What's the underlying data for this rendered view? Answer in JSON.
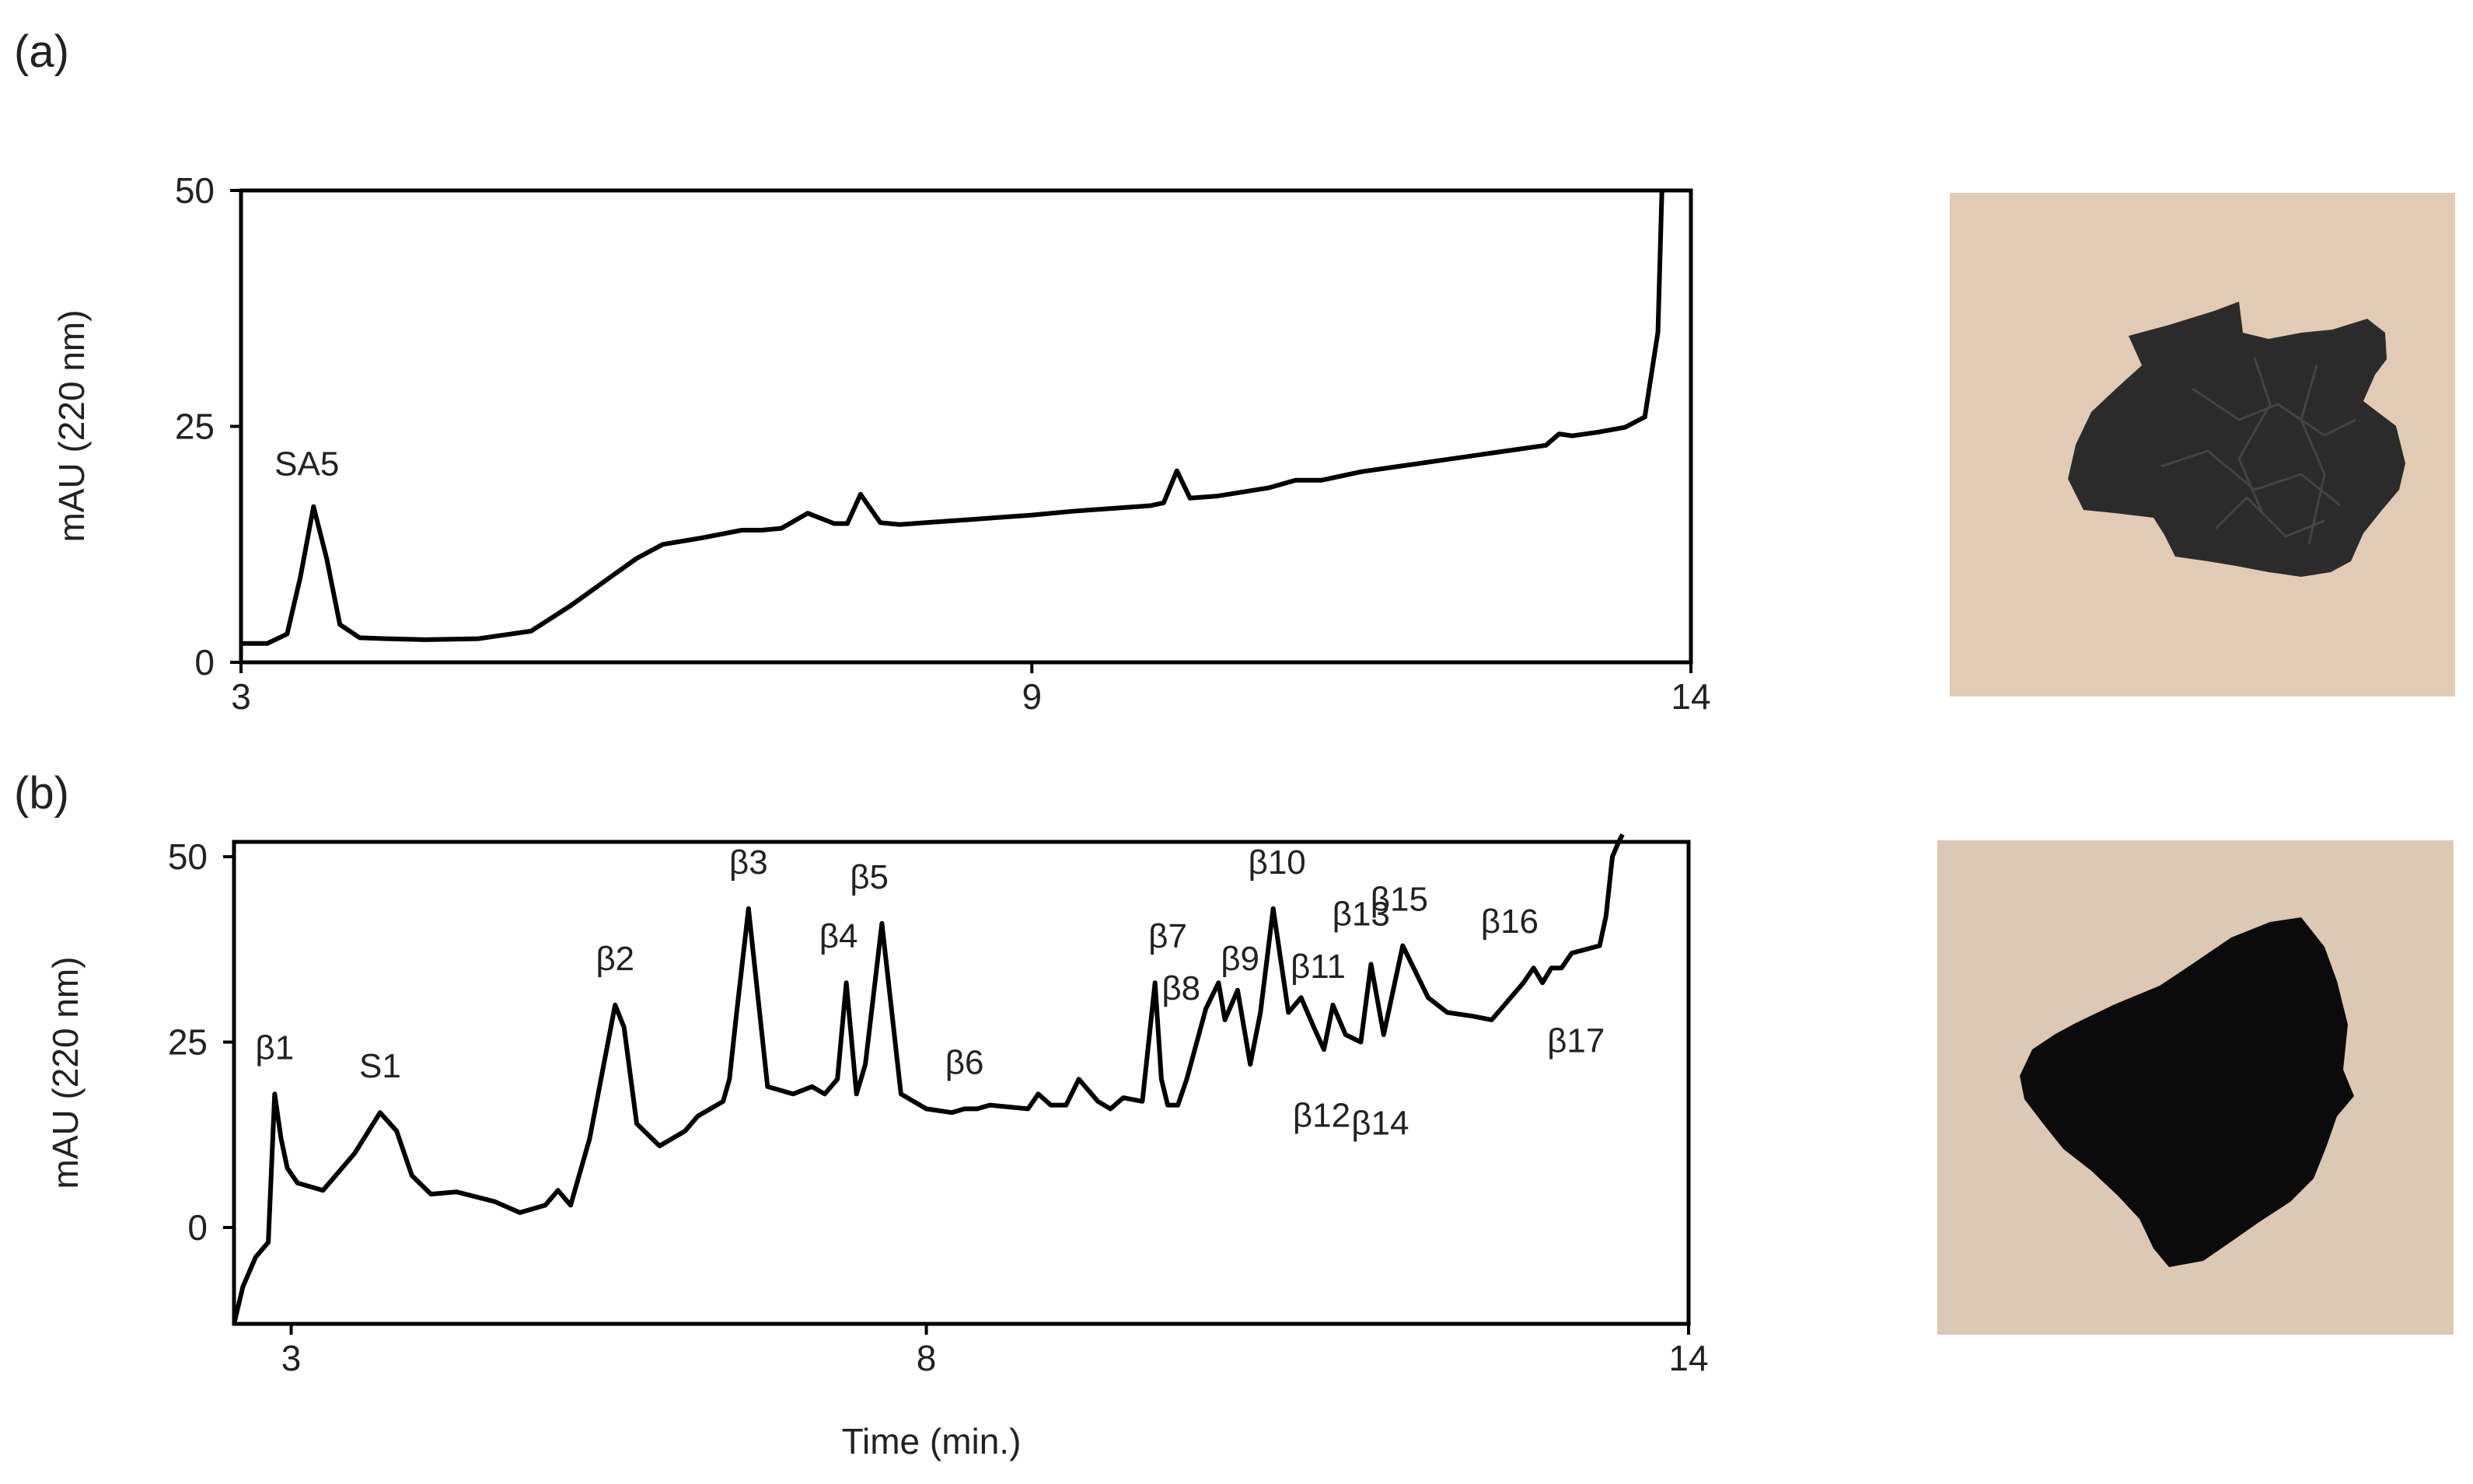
{
  "panels": {
    "a": {
      "label": "(a)"
    },
    "b": {
      "label": "(b)"
    }
  },
  "colors": {
    "trace": "#000000",
    "photo_bg_a": "#e2cbb6",
    "photo_bg_b": "#dcc8b5",
    "particle_a": "#2b2b2b",
    "particle_b": "#0b0b0b"
  },
  "chart_data": [
    {
      "type": "line",
      "panel": "a",
      "title": "",
      "xlabel": "",
      "ylabel": "mAU (220 nm)",
      "xlim": [
        3,
        14
      ],
      "ylim": [
        0,
        50
      ],
      "xticks": [
        3,
        9,
        14
      ],
      "yticks": [
        0,
        25,
        50
      ],
      "series": [
        {
          "x": [
            3.0,
            3.2,
            3.35,
            3.45,
            3.55,
            3.65,
            3.75,
            3.9,
            4.1,
            4.4,
            4.8,
            5.2,
            5.5,
            5.8,
            6.0,
            6.2,
            6.5,
            6.8,
            6.95,
            7.1,
            7.3,
            7.5,
            7.6,
            7.7,
            7.85,
            8.0,
            8.2,
            8.5,
            8.8,
            9.0,
            9.3,
            9.6,
            9.9,
            10.0,
            10.1,
            10.2,
            10.4,
            10.8,
            11.0,
            11.2,
            11.5,
            11.9,
            12.2,
            12.5,
            12.9,
            13.0,
            13.1,
            13.3,
            13.5,
            13.65,
            13.75,
            13.78
          ],
          "y": [
            2.0,
            2.0,
            3.0,
            9.0,
            16.5,
            11.0,
            4.0,
            2.6,
            2.5,
            2.4,
            2.5,
            3.3,
            6.0,
            9.0,
            11.0,
            12.5,
            13.2,
            14.0,
            14.0,
            14.2,
            15.8,
            14.7,
            14.7,
            17.8,
            14.8,
            14.6,
            14.8,
            15.1,
            15.4,
            15.6,
            16.0,
            16.3,
            16.6,
            16.9,
            20.3,
            17.4,
            17.6,
            18.5,
            19.3,
            19.3,
            20.2,
            21.0,
            21.6,
            22.2,
            23.0,
            24.2,
            24.0,
            24.4,
            24.9,
            26.0,
            35.0,
            50.0
          ]
        }
      ],
      "annotations": [
        {
          "text": "SA5",
          "x": 3.5,
          "y": 16.5
        }
      ]
    },
    {
      "type": "line",
      "panel": "b",
      "title": "",
      "xlabel": "Time (min.)",
      "ylabel": "mAU (220 nm)",
      "xlim": [
        2.55,
        14
      ],
      "ylim": [
        -13,
        52
      ],
      "xticks": [
        3,
        8,
        14
      ],
      "yticks": [
        0,
        25,
        50
      ],
      "series": [
        {
          "x": [
            2.55,
            2.62,
            2.72,
            2.82,
            2.87,
            2.92,
            2.97,
            3.05,
            3.25,
            3.5,
            3.7,
            3.83,
            3.95,
            4.1,
            4.3,
            4.6,
            4.8,
            5.0,
            5.1,
            5.2,
            5.35,
            5.55,
            5.62,
            5.72,
            5.9,
            6.1,
            6.2,
            6.3,
            6.4,
            6.45,
            6.5,
            6.6,
            6.75,
            6.95,
            7.1,
            7.2,
            7.3,
            7.37,
            7.45,
            7.52,
            7.65,
            7.8,
            8.0,
            8.2,
            8.3,
            8.4,
            8.5,
            8.8,
            8.88,
            8.98,
            9.1,
            9.2,
            9.35,
            9.45,
            9.55,
            9.7,
            9.8,
            9.85,
            9.9,
            9.98,
            10.05,
            10.2,
            10.3,
            10.35,
            10.45,
            10.55,
            10.63,
            10.73,
            10.85,
            10.95,
            11.05,
            11.13,
            11.2,
            11.3,
            11.42,
            11.5,
            11.6,
            11.75,
            11.95,
            12.1,
            12.3,
            12.45,
            12.6,
            12.7,
            12.78,
            12.85,
            12.92,
            13.0,
            13.08,
            13.3,
            13.35,
            13.4,
            13.45,
            13.48
          ],
          "y": [
            -13.0,
            -8.0,
            -4.0,
            -2.0,
            18.0,
            12.0,
            8.0,
            6.0,
            5.0,
            10.0,
            15.5,
            13.0,
            7.0,
            4.5,
            4.8,
            3.5,
            2.0,
            3.0,
            5.0,
            3.0,
            12.0,
            30.0,
            27.0,
            14.0,
            11.0,
            13.0,
            15.0,
            16.0,
            17.0,
            20.0,
            28.0,
            43.0,
            19.0,
            18.0,
            19.0,
            18.0,
            20.0,
            33.0,
            18.0,
            22.0,
            41.0,
            18.0,
            16.0,
            15.5,
            16.0,
            16.0,
            16.5,
            16.0,
            18.0,
            16.5,
            16.5,
            20.0,
            17.0,
            16.0,
            17.5,
            17.0,
            33.0,
            20.0,
            16.5,
            16.5,
            20.0,
            29.5,
            33.0,
            28.0,
            32.0,
            22.0,
            29.0,
            43.0,
            29.0,
            31.0,
            27.0,
            24.0,
            30.0,
            26.0,
            25.0,
            35.5,
            26.0,
            38.0,
            31.0,
            29.0,
            28.5,
            28.0,
            31.0,
            33.0,
            35.0,
            33.0,
            35.0,
            35.0,
            37.0,
            38.0,
            42.0,
            50.0,
            52.0,
            53.0
          ]
        }
      ],
      "annotations": [
        {
          "text": "β1",
          "x": 2.87,
          "y": 18.0
        },
        {
          "text": "S1",
          "x": 3.7,
          "y": 15.5
        },
        {
          "text": "β2",
          "x": 5.55,
          "y": 30.0
        },
        {
          "text": "β3",
          "x": 6.6,
          "y": 43.0
        },
        {
          "text": "β4",
          "x": 7.37,
          "y": 33.0
        },
        {
          "text": "β5",
          "x": 7.52,
          "y": 41.0
        },
        {
          "text": "β6",
          "x": 8.3,
          "y": 16.0
        },
        {
          "text": "β7",
          "x": 9.9,
          "y": 33.0
        },
        {
          "text": "β8",
          "x": 10.25,
          "y": 26.0
        },
        {
          "text": "β9",
          "x": 10.5,
          "y": 30.0
        },
        {
          "text": "β10",
          "x": 10.73,
          "y": 43.0
        },
        {
          "text": "β11",
          "x": 10.9,
          "y": 30.0
        },
        {
          "text": "β12",
          "x": 11.05,
          "y": 23.0
        },
        {
          "text": "β13",
          "x": 11.3,
          "y": 36.0
        },
        {
          "text": "β14",
          "x": 11.45,
          "y": 22.5
        },
        {
          "text": "β15",
          "x": 11.6,
          "y": 38.0
        },
        {
          "text": "β16",
          "x": 12.5,
          "y": 35.0
        },
        {
          "text": "β17",
          "x": 12.9,
          "y": 31.0
        }
      ]
    }
  ]
}
